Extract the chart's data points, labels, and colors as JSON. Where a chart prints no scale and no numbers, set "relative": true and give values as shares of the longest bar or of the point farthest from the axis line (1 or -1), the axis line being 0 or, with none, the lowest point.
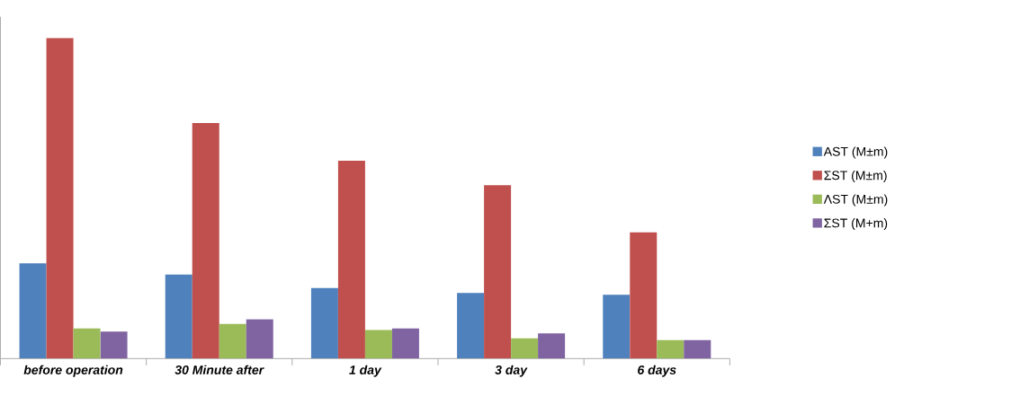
{
  "chart_data": {
    "type": "bar",
    "relative": true,
    "categories": [
      "before operation",
      "30 Minute after",
      "1 day",
      "3 day",
      "6 days"
    ],
    "series": [
      {
        "name": "AST (M±m)",
        "color": "#4f81bd",
        "values": [
          0.297,
          0.262,
          0.22,
          0.205,
          0.199
        ]
      },
      {
        "name": "ΣST (M±m)",
        "color": "#c0504d",
        "values": [
          1.0,
          0.735,
          0.617,
          0.541,
          0.394
        ]
      },
      {
        "name": "ΛST (M±m)",
        "color": "#9bbb59",
        "values": [
          0.094,
          0.108,
          0.089,
          0.063,
          0.058
        ]
      },
      {
        "name": "ΣST (M+m)",
        "color": "#8064a2",
        "values": [
          0.084,
          0.123,
          0.094,
          0.079,
          0.058
        ]
      }
    ],
    "legend": "right",
    "grid": false
  }
}
